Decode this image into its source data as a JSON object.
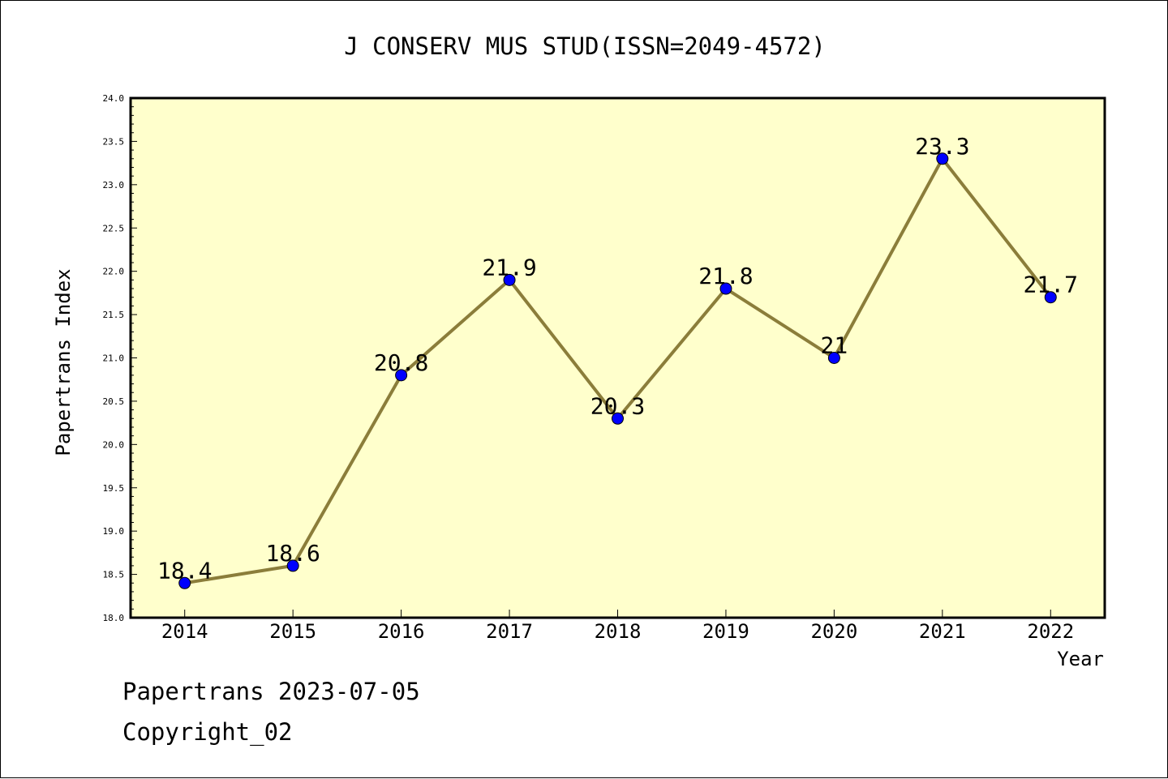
{
  "footer": {
    "line1": "Papertrans 2023-07-05",
    "line2": "Copyright_02"
  },
  "chart_data": {
    "type": "line",
    "title": "J CONSERV MUS STUD(ISSN=2049-4572)",
    "xlabel": "Year",
    "ylabel": "Papertrans Index",
    "x": [
      2014,
      2015,
      2016,
      2017,
      2018,
      2019,
      2020,
      2021,
      2022
    ],
    "x_tick_labels": [
      "2014",
      "2015",
      "2016",
      "2017",
      "2018",
      "2019",
      "2020",
      "2021",
      "2022"
    ],
    "values": [
      18.4,
      18.6,
      20.8,
      21.9,
      20.3,
      21.8,
      21.0,
      23.3,
      21.7
    ],
    "data_labels": [
      "18.4",
      "18.6",
      "20.8",
      "21.9",
      "20.3",
      "21.8",
      "21",
      "23.3",
      "21.7"
    ],
    "y_tick_labels": [
      "18.0",
      "18.5",
      "19.0",
      "19.5",
      "20.0",
      "20.5",
      "21.0",
      "21.5",
      "22.0",
      "22.5",
      "23.0",
      "23.5",
      "24.0"
    ],
    "ylim": [
      18.0,
      24.0
    ],
    "xlim": [
      2013.5,
      2022.5
    ],
    "grid": false,
    "colors": {
      "plot_background": "#ffffcc",
      "line": "#8b7d3a",
      "marker": "#0000ff",
      "axis": "#000000"
    }
  }
}
